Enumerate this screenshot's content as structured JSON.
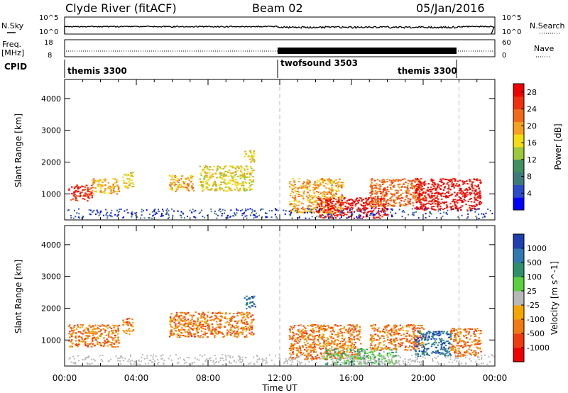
{
  "header": {
    "station": "Clyde River (fitACF)",
    "beam": "Beam 02",
    "date": "05/Jan/2016"
  },
  "aux_panels": {
    "nsky_label": "N.Sky",
    "nsearch_label": "N.Search",
    "nsky_ticks": [
      "10^5",
      "10^0"
    ],
    "nsearch_ticks": [
      "10^5",
      "10^0"
    ],
    "freq_label_1": "Freq.",
    "freq_label_2": "[MHz]",
    "freq_ticks": [
      "18",
      "8"
    ],
    "nave_label": "Nave",
    "nave_ticks": [
      "60",
      "0"
    ],
    "cpid_label": "CPID",
    "cpid_segments": [
      {
        "name": "themis 3300",
        "start": 0,
        "end": 12
      },
      {
        "name": "twofsound 3503",
        "start": 12,
        "end": 22
      },
      {
        "name": "themis 3300",
        "start": 22,
        "end": 24
      }
    ]
  },
  "chart_data": [
    {
      "type": "heatmap",
      "title": "",
      "xlabel": "Time UT",
      "ylabel": "Slant Range [km]",
      "x_ticks": [
        "00:00",
        "04:00",
        "08:00",
        "12:00",
        "16:00",
        "20:00",
        "00:00"
      ],
      "xlim_hours": [
        0,
        24
      ],
      "y_ticks": [
        "1000",
        "2000",
        "3000",
        "4000"
      ],
      "ylim": [
        180,
        4600
      ],
      "colorbar": {
        "label": "Power [dB]",
        "ticks": [
          "4",
          "8",
          "12",
          "16",
          "20",
          "24",
          "28"
        ],
        "colors": [
          "#0000ff",
          "#2b4cc8",
          "#3f7a7a",
          "#409060",
          "#9cc83a",
          "#f2dd10",
          "#f5a020",
          "#f06a1a",
          "#f03010",
          "#ee0000"
        ]
      },
      "patches": [
        {
          "t0": 0.2,
          "t1": 1.5,
          "r0": 800,
          "r1": 1300,
          "v": 27
        },
        {
          "t0": 1.5,
          "t1": 3.0,
          "r0": 1000,
          "r1": 1500,
          "v": 19
        },
        {
          "t0": 3.2,
          "t1": 3.8,
          "r0": 1200,
          "r1": 1700,
          "v": 17
        },
        {
          "t0": 5.8,
          "t1": 7.2,
          "r0": 1100,
          "r1": 1600,
          "v": 21
        },
        {
          "t0": 7.5,
          "t1": 10.5,
          "r0": 1100,
          "r1": 1900,
          "v": 18
        },
        {
          "t0": 10.0,
          "t1": 10.6,
          "r0": 2000,
          "r1": 2400,
          "v": 17
        },
        {
          "t0": 12.5,
          "t1": 15.5,
          "r0": 400,
          "r1": 1500,
          "v": 20
        },
        {
          "t0": 14.0,
          "t1": 18.0,
          "r0": 250,
          "r1": 900,
          "v": 30
        },
        {
          "t0": 17.0,
          "t1": 20.0,
          "r0": 600,
          "r1": 1500,
          "v": 24
        },
        {
          "t0": 19.5,
          "t1": 23.2,
          "r0": 500,
          "r1": 1500,
          "v": 28
        }
      ]
    },
    {
      "type": "heatmap",
      "title": "",
      "xlabel": "Time UT",
      "ylabel": "Slant Range [km]",
      "x_ticks": [
        "00:00",
        "04:00",
        "08:00",
        "12:00",
        "16:00",
        "20:00",
        "00:00"
      ],
      "xlim_hours": [
        0,
        24
      ],
      "y_ticks": [
        "1000",
        "2000",
        "3000",
        "4000"
      ],
      "ylim": [
        180,
        4600
      ],
      "colorbar": {
        "label": "Velocity [m s^-1]",
        "ticks": [
          "1000",
          "500",
          "100",
          "25",
          "-25",
          "-100",
          "-500",
          "-1000"
        ],
        "colors": [
          "#1f3fb0",
          "#2f78b0",
          "#2e8f6a",
          "#5ccf40",
          "#b8b8b8",
          "#f5a500",
          "#f07a10",
          "#f03a10",
          "#ee0000"
        ]
      },
      "patches": [
        {
          "t0": 0.2,
          "t1": 3.0,
          "r0": 800,
          "r1": 1500,
          "v": -150
        },
        {
          "t0": 3.2,
          "t1": 3.8,
          "r0": 1200,
          "r1": 1700,
          "v": -150
        },
        {
          "t0": 5.8,
          "t1": 10.5,
          "r0": 1100,
          "r1": 1900,
          "v": -200
        },
        {
          "t0": 10.0,
          "t1": 10.6,
          "r0": 2000,
          "r1": 2400,
          "v": 600
        },
        {
          "t0": 12.5,
          "t1": 16.5,
          "r0": 400,
          "r1": 1500,
          "v": -150
        },
        {
          "t0": 14.5,
          "t1": 18.5,
          "r0": 250,
          "r1": 750,
          "v": 80
        },
        {
          "t0": 17.0,
          "t1": 20.0,
          "r0": 700,
          "r1": 1500,
          "v": -200
        },
        {
          "t0": 19.5,
          "t1": 21.5,
          "r0": 500,
          "r1": 1300,
          "v": 700
        },
        {
          "t0": 21.5,
          "t1": 23.2,
          "r0": 500,
          "r1": 1400,
          "v": -300
        }
      ]
    }
  ]
}
